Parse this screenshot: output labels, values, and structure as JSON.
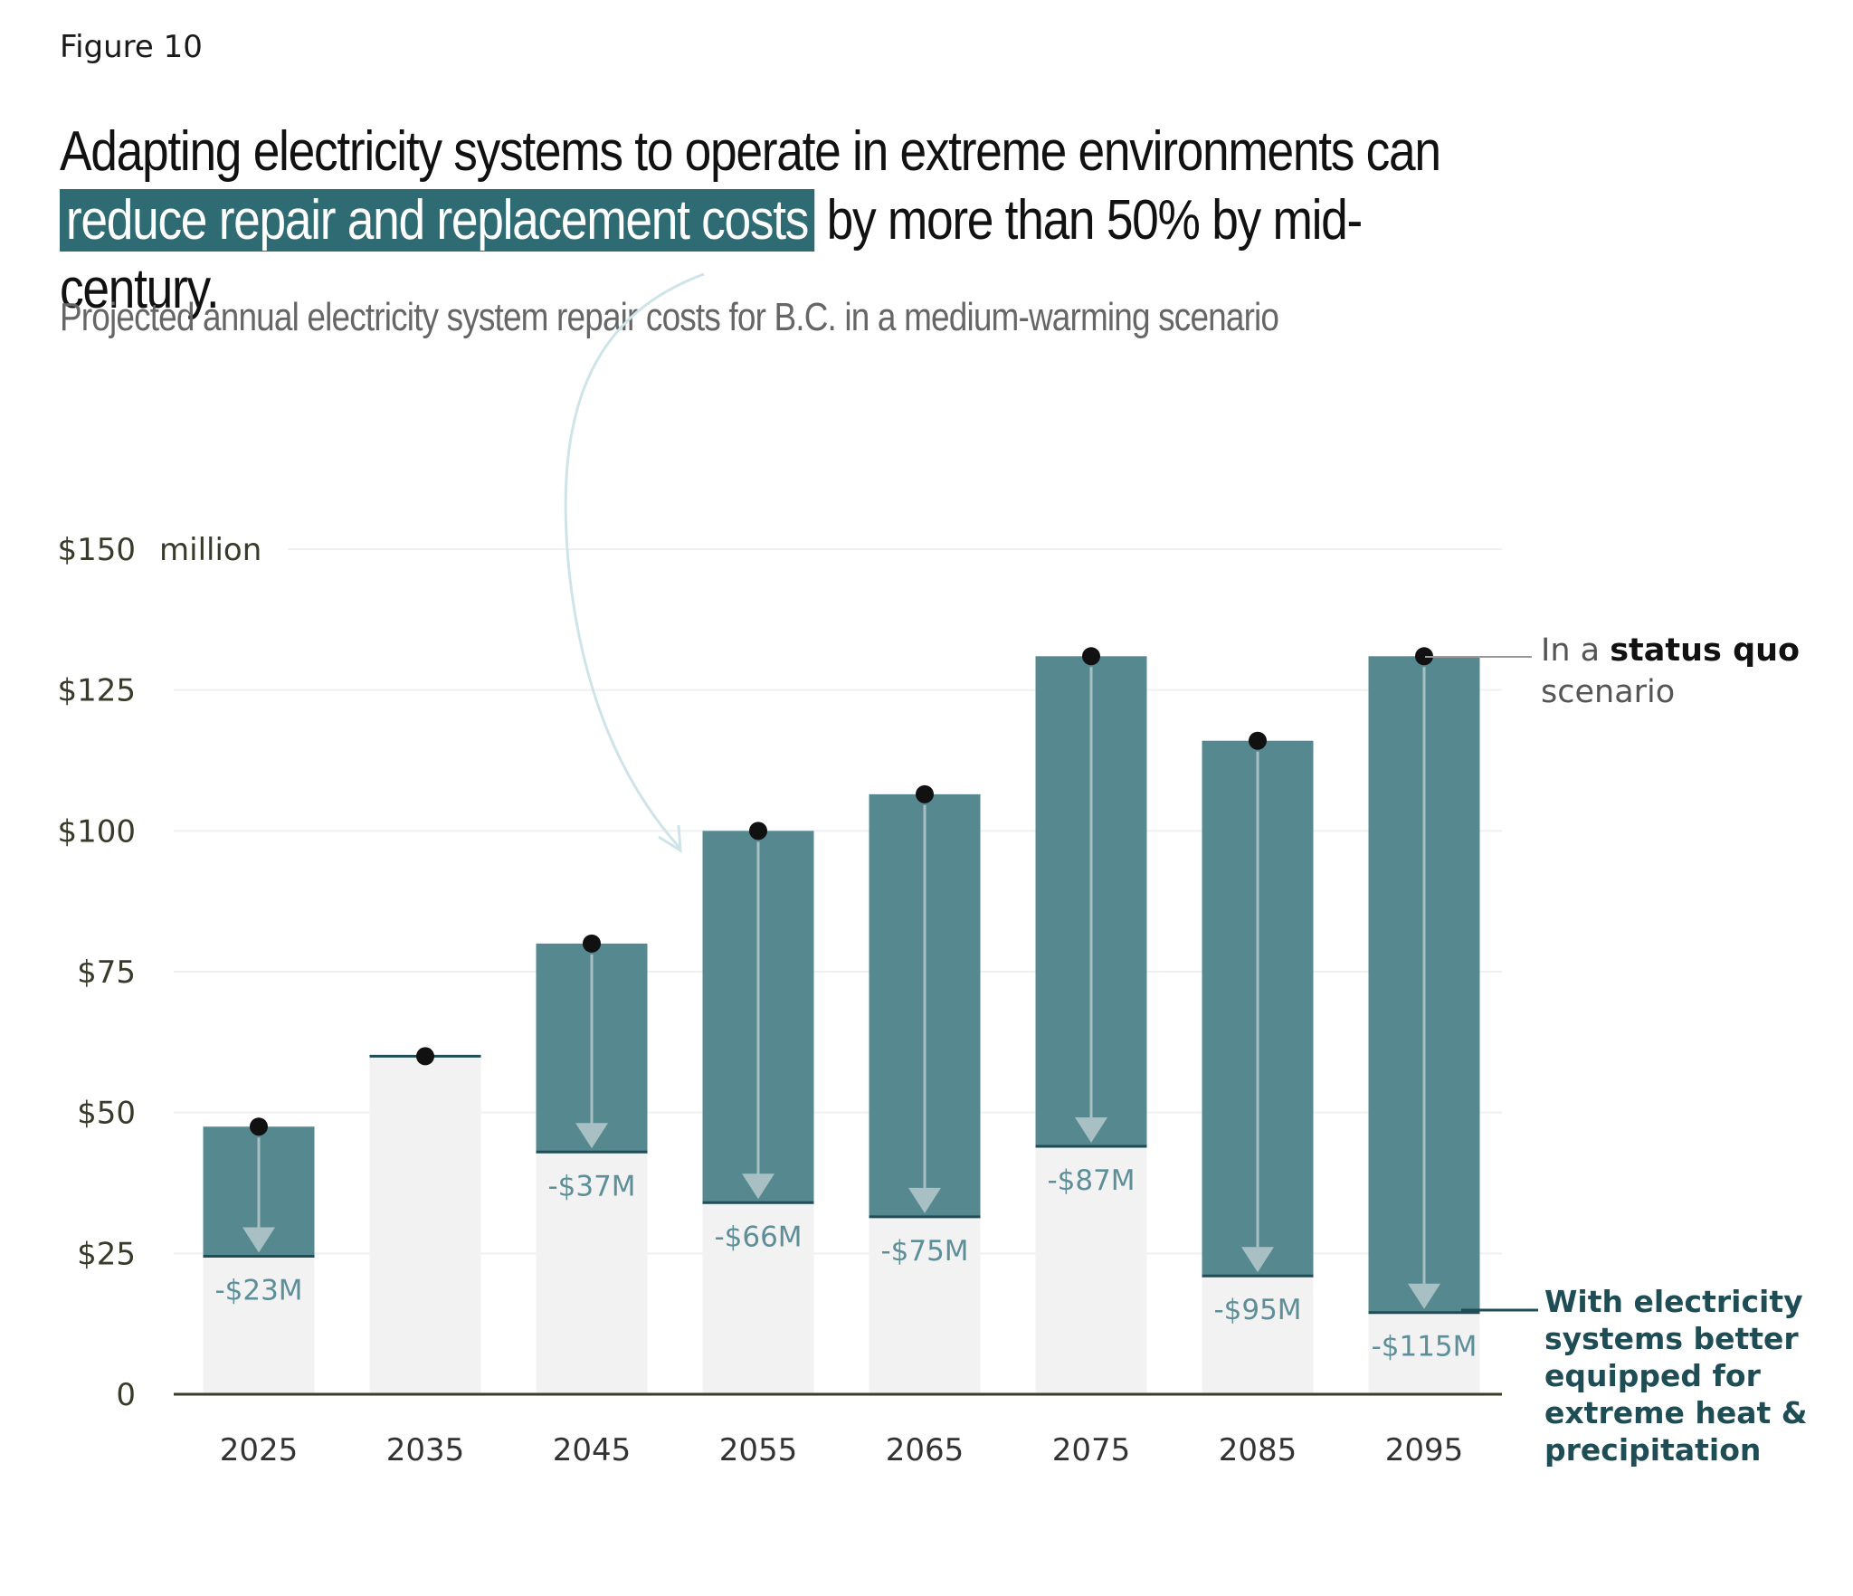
{
  "figure_label": "Figure 10",
  "headline": {
    "line1": "Adapting electricity systems to operate in extreme environments can",
    "highlight": "reduce repair and replacement costs",
    "rest": " by more than 50% by mid-century."
  },
  "annotations": {
    "status_quo_prefix": "In a ",
    "status_quo_bold": "status quo",
    "status_quo_suffix": "scenario",
    "adapted": "With electricity systems better equipped for extreme heat & precipitation"
  },
  "colors": {
    "status_quo_bar": "#568890",
    "adapted_bar": "#f2f2f2",
    "adapted_line": "#1f4d55",
    "marker": "#111111",
    "arrow": "#a8c0c4",
    "saving_text": "#5e8f99",
    "highlight": "#2e6b73"
  },
  "chart_data": {
    "type": "bar",
    "title": "",
    "subtitle": "Projected annual electricity system repair costs for B.C. in a medium-warming scenario",
    "y_unit": "million",
    "ylim": [
      0,
      150
    ],
    "yticks": [
      {
        "value": 0,
        "label": "0"
      },
      {
        "value": 25,
        "label": "$25"
      },
      {
        "value": 50,
        "label": "$50"
      },
      {
        "value": 75,
        "label": "$75"
      },
      {
        "value": 100,
        "label": "$100"
      },
      {
        "value": 125,
        "label": "$125"
      },
      {
        "value": 150,
        "label": "$150"
      }
    ],
    "grid": true,
    "categories": [
      "2025",
      "2035",
      "2045",
      "2055",
      "2065",
      "2075",
      "2085",
      "2095"
    ],
    "series": [
      {
        "name": "status quo",
        "values": [
          47.5,
          60,
          80,
          100,
          106.5,
          131,
          116,
          131
        ]
      },
      {
        "name": "adapted",
        "values": [
          24.5,
          60,
          43,
          34,
          31.5,
          44,
          21,
          14.5
        ]
      }
    ],
    "savings_labels": [
      "-$23M",
      "",
      "-$37M",
      "-$66M",
      "-$75M",
      "-$87M",
      "-$95M",
      "-$115M"
    ]
  }
}
